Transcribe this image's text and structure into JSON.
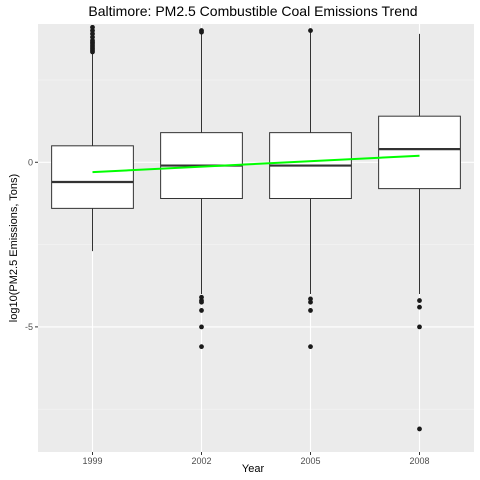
{
  "chart_data": {
    "type": "box",
    "title": "Baltimore: PM2.5 Combustible Coal Emissions Trend",
    "xlabel": "Year",
    "ylabel": "log10(PM2.5 Emissions, Tons)",
    "categories": [
      "1999",
      "2002",
      "2005",
      "2008"
    ],
    "y_ticks": [
      -5,
      0
    ],
    "ylim": [
      -8.8,
      4.2
    ],
    "grid": true,
    "boxes": [
      {
        "category": "1999",
        "lower_whisker": -2.7,
        "q1": -1.4,
        "median": -0.6,
        "q3": 0.5,
        "upper_whisker": 3.3,
        "outliers": [
          3.35,
          3.4,
          3.45,
          3.5,
          3.55,
          3.6,
          3.65,
          3.7,
          3.8,
          3.9,
          4.0,
          4.1
        ]
      },
      {
        "category": "2002",
        "lower_whisker": -4.0,
        "q1": -1.1,
        "median": -0.1,
        "q3": 0.9,
        "upper_whisker": 3.9,
        "outliers": [
          3.95,
          4.0,
          -4.1,
          -4.2,
          -4.25,
          -4.5,
          -5.0,
          -5.6
        ]
      },
      {
        "category": "2005",
        "lower_whisker": -4.0,
        "q1": -1.1,
        "median": -0.1,
        "q3": 0.9,
        "upper_whisker": 4.0,
        "outliers": [
          4.0,
          -4.15,
          -4.25,
          -4.5,
          -5.6
        ]
      },
      {
        "category": "2008",
        "lower_whisker": -4.0,
        "q1": -0.8,
        "median": 0.4,
        "q3": 1.4,
        "upper_whisker": 3.9,
        "outliers": [
          -4.2,
          -4.4,
          -5.0,
          -8.1
        ]
      }
    ],
    "trend_line": {
      "color": "#00ff00",
      "values": [
        -0.3,
        -0.1,
        0.0,
        0.2
      ]
    },
    "colors": {
      "panel": "#ebebeb",
      "grid_major": "#ffffff",
      "box_fill": "#ffffff",
      "box_stroke": "#333333"
    }
  }
}
